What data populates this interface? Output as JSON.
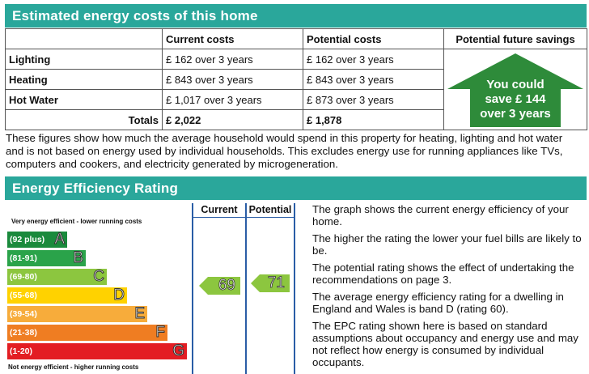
{
  "costs_section": {
    "title": "Estimated energy costs of this home",
    "headers": {
      "blank": "",
      "current": "Current costs",
      "potential": "Potential costs",
      "savings": "Potential future savings"
    },
    "rows": [
      {
        "label": "Lighting",
        "current": "£ 162 over 3 years",
        "potential": "£ 162 over 3 years"
      },
      {
        "label": "Heating",
        "current": "£ 843 over 3 years",
        "potential": "£ 843 over 3 years"
      },
      {
        "label": "Hot Water",
        "current": "£ 1,017 over 3 years",
        "potential": "£ 873 over 3 years"
      }
    ],
    "totals": {
      "label": "Totals",
      "current": "£ 2,022",
      "potential": "£ 1,878"
    },
    "savings_line1": "You could",
    "savings_line2": "save £ 144",
    "savings_line3": "over 3 years",
    "savings_color": "#2e8b3a"
  },
  "paragraph": "These figures show how much the average household would spend in this property for heating, lighting and hot water and is not based on energy used by individual households. This excludes energy use for running appliances like TVs, computers and cookers, and electricity generated by microgeneration.",
  "rating_section": {
    "title": "Energy Efficiency Rating",
    "col_current": "Current",
    "col_potential": "Potential",
    "top_note": "Very energy efficient - lower running costs",
    "bottom_note": "Not energy efficient - higher running costs",
    "bands": [
      {
        "range": "(92 plus)",
        "letter": "A",
        "color": "#1a8a3c"
      },
      {
        "range": "(81-91)",
        "letter": "B",
        "color": "#2aa34a"
      },
      {
        "range": "(69-80)",
        "letter": "C",
        "color": "#8cc63f"
      },
      {
        "range": "(55-68)",
        "letter": "D",
        "color": "#ffd200"
      },
      {
        "range": "(39-54)",
        "letter": "E",
        "color": "#f7ac3b"
      },
      {
        "range": "(21-38)",
        "letter": "F",
        "color": "#ef7d22"
      },
      {
        "range": "(1-20)",
        "letter": "G",
        "color": "#e31d23"
      }
    ],
    "current_value": "69",
    "potential_value": "71",
    "indicator_color": "#8cc63f",
    "explanations": [
      "The graph shows the current energy efficiency of your home.",
      "The higher the rating the lower your fuel bills are likely to be.",
      "The potential rating shows the effect of undertaking the recommendations on page 3.",
      "The average energy efficiency rating for a dwelling in England and Wales is band D (rating 60).",
      "The EPC rating shown here is based on standard assumptions about occupancy and energy use and may not reflect how energy is consumed by individual occupants."
    ]
  }
}
